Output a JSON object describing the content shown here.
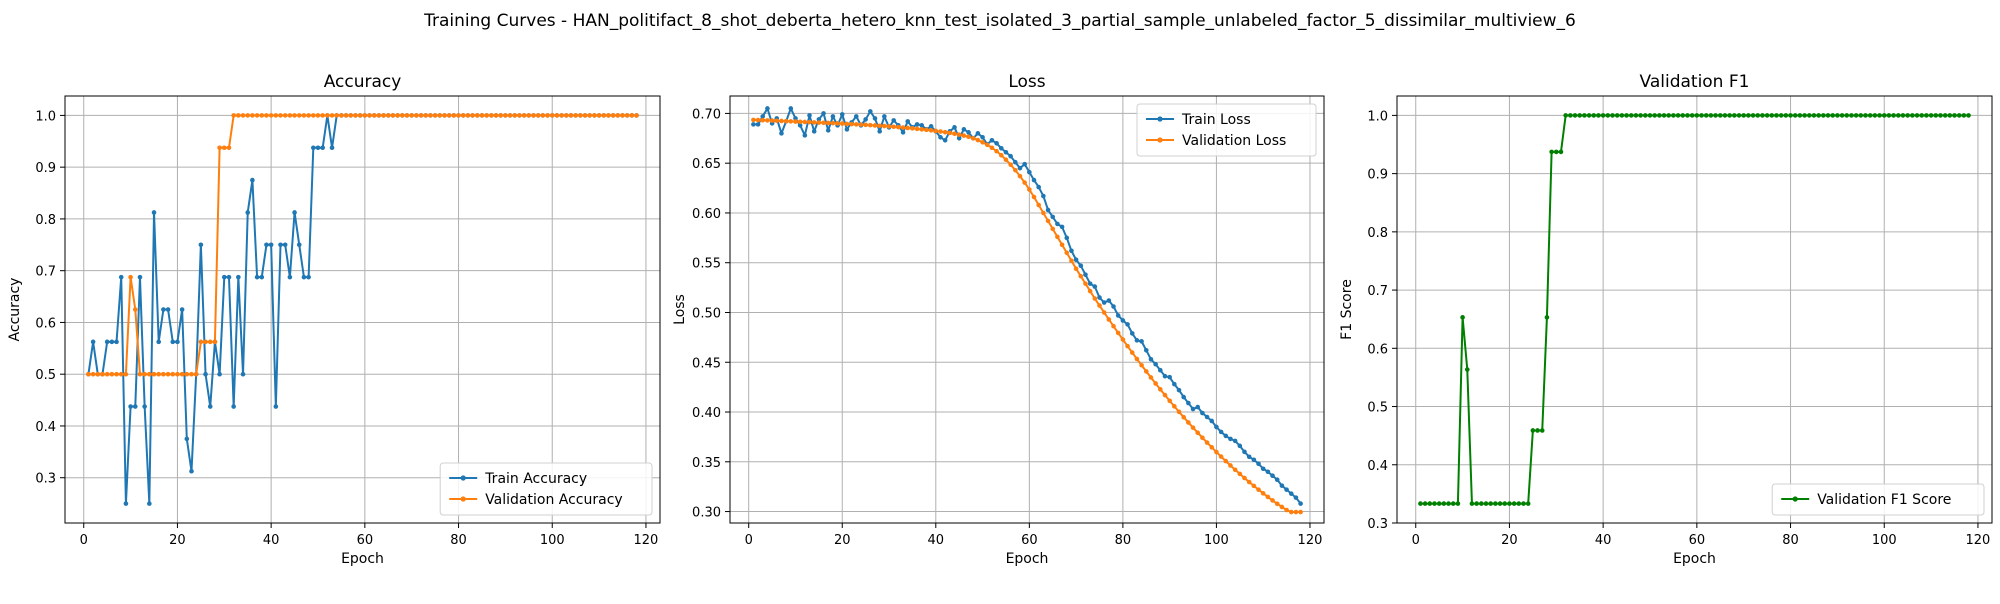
{
  "figure": {
    "suptitle": "Training Curves - HAN_politifact_8_shot_deberta_hetero_knn_test_isolated_3_partial_sample_unlabeled_factor_5_dissimilar_multiview_6"
  },
  "colors": {
    "blue": "#1f77b4",
    "orange": "#ff7f0e",
    "green": "#008000"
  },
  "chart_data": [
    {
      "type": "line",
      "title": "Accuracy",
      "xlabel": "Epoch",
      "ylabel": "Accuracy",
      "xlim": [
        -4,
        123
      ],
      "ylim": [
        0.2125,
        1.0375
      ],
      "xticks": [
        0,
        20,
        40,
        60,
        80,
        100,
        120
      ],
      "yticks": [
        0.3,
        0.4,
        0.5,
        0.6,
        0.7,
        0.8,
        0.9,
        1.0
      ],
      "ytick_labels": [
        "0.3",
        "0.4",
        "0.5",
        "0.6",
        "0.7",
        "0.8",
        "0.9",
        "1.0"
      ],
      "grid": true,
      "legend": "lower-right",
      "series": [
        {
          "name": "Train Accuracy",
          "color": "#1f77b4",
          "x_start": 1,
          "values": [
            0.5,
            0.5625,
            0.5,
            0.5,
            0.5625,
            0.5625,
            0.5625,
            0.6875,
            0.25,
            0.4375,
            0.4375,
            0.6875,
            0.4375,
            0.25,
            0.8125,
            0.5625,
            0.625,
            0.625,
            0.5625,
            0.5625,
            0.625,
            0.375,
            0.3125,
            0.5,
            0.75,
            0.5,
            0.4375,
            0.5625,
            0.5,
            0.6875,
            0.6875,
            0.4375,
            0.6875,
            0.5,
            0.8125,
            0.875,
            0.6875,
            0.6875,
            0.75,
            0.75,
            0.4375,
            0.75,
            0.75,
            0.6875,
            0.8125,
            0.75,
            0.6875,
            0.6875,
            0.9375,
            0.9375,
            0.9375,
            1.0,
            0.9375,
            1.0,
            1.0,
            1.0,
            1.0,
            1.0,
            1.0,
            1.0,
            1.0,
            1.0,
            1.0,
            1.0,
            1.0,
            1.0,
            1.0,
            1.0,
            1.0,
            1.0,
            1.0,
            1.0,
            1.0,
            1.0,
            1.0,
            1.0,
            1.0,
            1.0,
            1.0,
            1.0,
            1.0,
            1.0,
            1.0,
            1.0,
            1.0,
            1.0,
            1.0,
            1.0,
            1.0,
            1.0,
            1.0,
            1.0,
            1.0,
            1.0,
            1.0,
            1.0,
            1.0,
            1.0,
            1.0,
            1.0,
            1.0,
            1.0,
            1.0,
            1.0,
            1.0,
            1.0,
            1.0,
            1.0,
            1.0,
            1.0,
            1.0,
            1.0,
            1.0,
            1.0,
            1.0,
            1.0,
            1.0,
            1.0
          ]
        },
        {
          "name": "Validation Accuracy",
          "color": "#ff7f0e",
          "x_start": 1,
          "values": [
            0.5,
            0.5,
            0.5,
            0.5,
            0.5,
            0.5,
            0.5,
            0.5,
            0.5,
            0.6875,
            0.625,
            0.5,
            0.5,
            0.5,
            0.5,
            0.5,
            0.5,
            0.5,
            0.5,
            0.5,
            0.5,
            0.5,
            0.5,
            0.5,
            0.5625,
            0.5625,
            0.5625,
            0.5625,
            0.9375,
            0.9375,
            0.9375,
            1.0,
            1.0,
            1.0,
            1.0,
            1.0,
            1.0,
            1.0,
            1.0,
            1.0,
            1.0,
            1.0,
            1.0,
            1.0,
            1.0,
            1.0,
            1.0,
            1.0,
            1.0,
            1.0,
            1.0,
            1.0,
            1.0,
            1.0,
            1.0,
            1.0,
            1.0,
            1.0,
            1.0,
            1.0,
            1.0,
            1.0,
            1.0,
            1.0,
            1.0,
            1.0,
            1.0,
            1.0,
            1.0,
            1.0,
            1.0,
            1.0,
            1.0,
            1.0,
            1.0,
            1.0,
            1.0,
            1.0,
            1.0,
            1.0,
            1.0,
            1.0,
            1.0,
            1.0,
            1.0,
            1.0,
            1.0,
            1.0,
            1.0,
            1.0,
            1.0,
            1.0,
            1.0,
            1.0,
            1.0,
            1.0,
            1.0,
            1.0,
            1.0,
            1.0,
            1.0,
            1.0,
            1.0,
            1.0,
            1.0,
            1.0,
            1.0,
            1.0,
            1.0,
            1.0,
            1.0,
            1.0,
            1.0,
            1.0,
            1.0,
            1.0,
            1.0,
            1.0
          ]
        }
      ]
    },
    {
      "type": "line",
      "title": "Loss",
      "xlabel": "Epoch",
      "ylabel": "Loss",
      "xlim": [
        -4,
        123
      ],
      "ylim": [
        0.2885,
        0.7175
      ],
      "xticks": [
        0,
        20,
        40,
        60,
        80,
        100,
        120
      ],
      "yticks": [
        0.3,
        0.35,
        0.4,
        0.45,
        0.5,
        0.55,
        0.6,
        0.65,
        0.7
      ],
      "ytick_labels": [
        "0.30",
        "0.35",
        "0.40",
        "0.45",
        "0.50",
        "0.55",
        "0.60",
        "0.65",
        "0.70"
      ],
      "grid": true,
      "legend": "top-right",
      "series": [
        {
          "name": "Train Loss",
          "color": "#1f77b4",
          "x_start": 1,
          "values": [
            0.689,
            0.689,
            0.697,
            0.705,
            0.69,
            0.695,
            0.68,
            0.692,
            0.705,
            0.695,
            0.688,
            0.678,
            0.698,
            0.682,
            0.694,
            0.7,
            0.683,
            0.697,
            0.688,
            0.699,
            0.684,
            0.691,
            0.697,
            0.688,
            0.694,
            0.702,
            0.695,
            0.682,
            0.697,
            0.686,
            0.693,
            0.688,
            0.681,
            0.692,
            0.686,
            0.689,
            0.688,
            0.684,
            0.687,
            0.682,
            0.676,
            0.673,
            0.682,
            0.686,
            0.675,
            0.684,
            0.681,
            0.675,
            0.68,
            0.676,
            0.669,
            0.673,
            0.67,
            0.665,
            0.661,
            0.657,
            0.651,
            0.645,
            0.649,
            0.641,
            0.633,
            0.626,
            0.617,
            0.603,
            0.596,
            0.589,
            0.586,
            0.575,
            0.562,
            0.553,
            0.547,
            0.538,
            0.529,
            0.526,
            0.515,
            0.51,
            0.512,
            0.506,
            0.497,
            0.492,
            0.488,
            0.479,
            0.472,
            0.471,
            0.462,
            0.453,
            0.448,
            0.442,
            0.436,
            0.435,
            0.428,
            0.422,
            0.415,
            0.409,
            0.403,
            0.405,
            0.399,
            0.395,
            0.391,
            0.385,
            0.38,
            0.376,
            0.373,
            0.371,
            0.366,
            0.36,
            0.355,
            0.352,
            0.348,
            0.343,
            0.34,
            0.336,
            0.332,
            0.326,
            0.322,
            0.318,
            0.314,
            0.308
          ]
        },
        {
          "name": "Validation Loss",
          "color": "#ff7f0e",
          "x_start": 1,
          "values": [
            0.6935,
            0.6934,
            0.6932,
            0.693,
            0.6928,
            0.6926,
            0.6924,
            0.6922,
            0.692,
            0.6918,
            0.6916,
            0.6914,
            0.6912,
            0.691,
            0.6908,
            0.6906,
            0.6904,
            0.6902,
            0.69,
            0.6898,
            0.6895,
            0.6893,
            0.689,
            0.6888,
            0.6885,
            0.6882,
            0.6879,
            0.6876,
            0.6873,
            0.687,
            0.6866,
            0.6862,
            0.6858,
            0.6854,
            0.685,
            0.6845,
            0.684,
            0.6835,
            0.683,
            0.6824,
            0.6818,
            0.6811,
            0.6804,
            0.6796,
            0.6787,
            0.6777,
            0.6765,
            0.675,
            0.6732,
            0.671,
            0.6685,
            0.6655,
            0.662,
            0.658,
            0.6535,
            0.6485,
            0.643,
            0.637,
            0.6305,
            0.6235,
            0.616,
            0.608,
            0.6,
            0.592,
            0.584,
            0.576,
            0.568,
            0.56,
            0.552,
            0.544,
            0.5365,
            0.529,
            0.5215,
            0.514,
            0.507,
            0.5,
            0.493,
            0.4862,
            0.4795,
            0.4728,
            0.4662,
            0.4597,
            0.4533,
            0.447,
            0.4408,
            0.4347,
            0.4287,
            0.4228,
            0.417,
            0.4113,
            0.4057,
            0.4002,
            0.3948,
            0.3895,
            0.3843,
            0.3792,
            0.3742,
            0.3693,
            0.3645,
            0.3598,
            0.3552,
            0.3507,
            0.3463,
            0.342,
            0.3378,
            0.3337,
            0.3297,
            0.3258,
            0.322,
            0.3183,
            0.3147,
            0.3112,
            0.3078,
            0.3046,
            0.3015,
            0.2995,
            0.2995,
            0.2995
          ]
        }
      ]
    },
    {
      "type": "line",
      "title": "Validation F1",
      "xlabel": "Epoch",
      "ylabel": "F1 Score",
      "xlim": [
        -4,
        123
      ],
      "ylim": [
        0.3,
        1.0333
      ],
      "xticks": [
        0,
        20,
        40,
        60,
        80,
        100,
        120
      ],
      "yticks": [
        0.3,
        0.4,
        0.5,
        0.6,
        0.7,
        0.8,
        0.9,
        1.0
      ],
      "ytick_labels": [
        "0.3",
        "0.4",
        "0.5",
        "0.6",
        "0.7",
        "0.8",
        "0.9",
        "1.0"
      ],
      "grid": true,
      "legend": "lower-right",
      "series": [
        {
          "name": "Validation F1 Score",
          "color": "#008000",
          "x_start": 1,
          "values": [
            0.3333,
            0.3333,
            0.3333,
            0.3333,
            0.3333,
            0.3333,
            0.3333,
            0.3333,
            0.3333,
            0.6532,
            0.5636,
            0.3333,
            0.3333,
            0.3333,
            0.3333,
            0.3333,
            0.3333,
            0.3333,
            0.3333,
            0.3333,
            0.3333,
            0.3333,
            0.3333,
            0.3333,
            0.4589,
            0.4589,
            0.4589,
            0.6532,
            0.9373,
            0.9373,
            0.9373,
            1.0,
            1.0,
            1.0,
            1.0,
            1.0,
            1.0,
            1.0,
            1.0,
            1.0,
            1.0,
            1.0,
            1.0,
            1.0,
            1.0,
            1.0,
            1.0,
            1.0,
            1.0,
            1.0,
            1.0,
            1.0,
            1.0,
            1.0,
            1.0,
            1.0,
            1.0,
            1.0,
            1.0,
            1.0,
            1.0,
            1.0,
            1.0,
            1.0,
            1.0,
            1.0,
            1.0,
            1.0,
            1.0,
            1.0,
            1.0,
            1.0,
            1.0,
            1.0,
            1.0,
            1.0,
            1.0,
            1.0,
            1.0,
            1.0,
            1.0,
            1.0,
            1.0,
            1.0,
            1.0,
            1.0,
            1.0,
            1.0,
            1.0,
            1.0,
            1.0,
            1.0,
            1.0,
            1.0,
            1.0,
            1.0,
            1.0,
            1.0,
            1.0,
            1.0,
            1.0,
            1.0,
            1.0,
            1.0,
            1.0,
            1.0,
            1.0,
            1.0,
            1.0,
            1.0,
            1.0,
            1.0,
            1.0,
            1.0,
            1.0,
            1.0,
            1.0,
            1.0
          ]
        }
      ]
    }
  ]
}
